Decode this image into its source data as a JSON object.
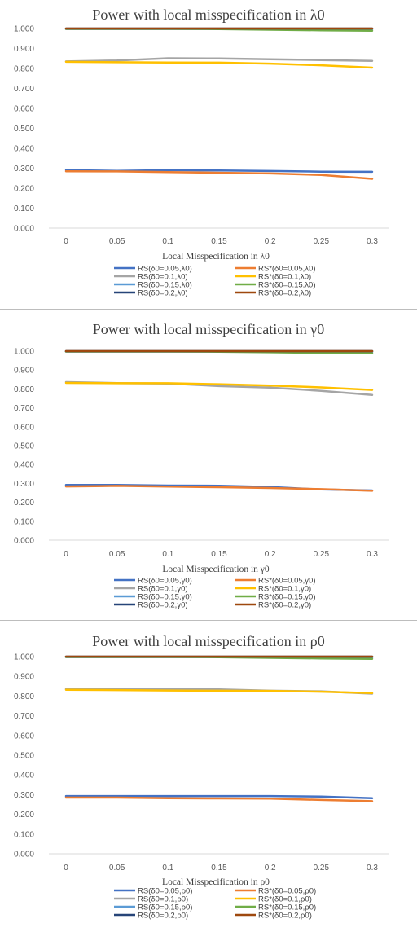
{
  "chart_data": [
    {
      "type": "line",
      "title": "Power with local misspecification in λ0",
      "xlabel": "Local Misspecification in λ0",
      "ylabel": "",
      "categories": [
        "0",
        "0.05",
        "0.1",
        "0.15",
        "0.2",
        "0.25",
        "0.3"
      ],
      "yticks": [
        "0.000",
        "0.100",
        "0.200",
        "0.300",
        "0.400",
        "0.500",
        "0.600",
        "0.700",
        "0.800",
        "0.900",
        "1.000"
      ],
      "ylim": [
        0,
        1
      ],
      "grid": false,
      "legend_position": "bottom",
      "series": [
        {
          "name": "RS(δ0=0.05,λ0)",
          "color": "#4472C4",
          "values": [
            0.29,
            0.287,
            0.29,
            0.289,
            0.286,
            0.283,
            0.282
          ]
        },
        {
          "name": "RS*(δ0=0.05,λ0)",
          "color": "#ED7D31",
          "values": [
            0.285,
            0.284,
            0.281,
            0.277,
            0.274,
            0.266,
            0.247
          ]
        },
        {
          "name": "RS(δ0=0.1,λ0)",
          "color": "#A5A5A5",
          "values": [
            0.835,
            0.84,
            0.851,
            0.85,
            0.846,
            0.842,
            0.838
          ]
        },
        {
          "name": "RS*(δ0=0.1,λ0)",
          "color": "#FFC000",
          "values": [
            0.833,
            0.831,
            0.83,
            0.829,
            0.824,
            0.816,
            0.804
          ]
        },
        {
          "name": "RS(δ0=0.15,λ0)",
          "color": "#5B9BD5",
          "values": [
            0.998,
            0.998,
            0.998,
            0.998,
            0.997,
            0.997,
            0.997
          ]
        },
        {
          "name": "RS*(δ0=0.15,λ0)",
          "color": "#70AD47",
          "values": [
            0.998,
            0.998,
            0.998,
            0.997,
            0.994,
            0.991,
            0.989
          ]
        },
        {
          "name": "RS(δ0=0.2,λ0)",
          "color": "#264478",
          "values": [
            1.0,
            1.0,
            1.0,
            1.0,
            1.0,
            1.0,
            1.0
          ]
        },
        {
          "name": "RS*(δ0=0.2,λ0)",
          "color": "#9E480E",
          "values": [
            1.0,
            1.0,
            1.0,
            1.0,
            1.0,
            1.0,
            1.0
          ]
        }
      ]
    },
    {
      "type": "line",
      "title": "Power with local misspecification in γ0",
      "xlabel": "Local Misspecification in γ0",
      "ylabel": "",
      "categories": [
        "0",
        "0.05",
        "0.1",
        "0.15",
        "0.2",
        "0.25",
        "0.3"
      ],
      "yticks": [
        "0.000",
        "0.100",
        "0.200",
        "0.300",
        "0.400",
        "0.500",
        "0.600",
        "0.700",
        "0.800",
        "0.900",
        "1.000"
      ],
      "ylim": [
        0,
        1
      ],
      "grid": false,
      "legend_position": "bottom",
      "series": [
        {
          "name": "RS(δ0=0.05,γ0)",
          "color": "#4472C4",
          "values": [
            0.292,
            0.292,
            0.289,
            0.288,
            0.281,
            0.268,
            0.263
          ]
        },
        {
          "name": "RS*(δ0=0.05,γ0)",
          "color": "#ED7D31",
          "values": [
            0.284,
            0.287,
            0.283,
            0.28,
            0.276,
            0.27,
            0.261
          ]
        },
        {
          "name": "RS(δ0=0.1,γ0)",
          "color": "#A5A5A5",
          "values": [
            0.836,
            0.831,
            0.829,
            0.815,
            0.807,
            0.79,
            0.768
          ]
        },
        {
          "name": "RS*(δ0=0.1,γ0)",
          "color": "#FFC000",
          "values": [
            0.832,
            0.83,
            0.83,
            0.825,
            0.818,
            0.808,
            0.795
          ]
        },
        {
          "name": "RS(δ0=0.15,γ0)",
          "color": "#5B9BD5",
          "values": [
            0.998,
            0.998,
            0.998,
            0.998,
            0.997,
            0.996,
            0.996
          ]
        },
        {
          "name": "RS*(δ0=0.15,γ0)",
          "color": "#70AD47",
          "values": [
            0.998,
            0.998,
            0.998,
            0.997,
            0.994,
            0.991,
            0.989
          ]
        },
        {
          "name": "RS(δ0=0.2,γ0)",
          "color": "#264478",
          "values": [
            1.0,
            1.0,
            1.0,
            1.0,
            1.0,
            1.0,
            1.0
          ]
        },
        {
          "name": "RS*(δ0=0.2,γ0)",
          "color": "#9E480E",
          "values": [
            1.0,
            1.0,
            1.0,
            1.0,
            1.0,
            1.0,
            1.0
          ]
        }
      ]
    },
    {
      "type": "line",
      "title": "Power with local misspecification in ρ0",
      "xlabel": "Local Misspecification in ρ0",
      "ylabel": "",
      "categories": [
        "0",
        "0.05",
        "0.1",
        "0.15",
        "0.2",
        "0.25",
        "0.3"
      ],
      "yticks": [
        "0.000",
        "0.100",
        "0.200",
        "0.300",
        "0.400",
        "0.500",
        "0.600",
        "0.700",
        "0.800",
        "0.900",
        "1.000"
      ],
      "ylim": [
        0,
        1
      ],
      "grid": false,
      "legend_position": "bottom",
      "series": [
        {
          "name": "RS(δ0=0.05,ρ0)",
          "color": "#4472C4",
          "values": [
            0.293,
            0.293,
            0.293,
            0.293,
            0.293,
            0.29,
            0.282
          ]
        },
        {
          "name": "RS*(δ0=0.05,ρ0)",
          "color": "#ED7D31",
          "values": [
            0.285,
            0.285,
            0.282,
            0.281,
            0.28,
            0.273,
            0.267
          ]
        },
        {
          "name": "RS(δ0=0.1,ρ0)",
          "color": "#A5A5A5",
          "values": [
            0.835,
            0.835,
            0.834,
            0.834,
            0.827,
            0.824,
            0.812
          ]
        },
        {
          "name": "RS*(δ0=0.1,ρ0)",
          "color": "#FFC000",
          "values": [
            0.832,
            0.83,
            0.828,
            0.827,
            0.826,
            0.822,
            0.815
          ]
        },
        {
          "name": "RS(δ0=0.15,ρ0)",
          "color": "#5B9BD5",
          "values": [
            0.998,
            0.998,
            0.998,
            0.998,
            0.997,
            0.996,
            0.995
          ]
        },
        {
          "name": "RS*(δ0=0.15,ρ0)",
          "color": "#70AD47",
          "values": [
            0.998,
            0.998,
            0.998,
            0.997,
            0.994,
            0.991,
            0.989
          ]
        },
        {
          "name": "RS(δ0=0.2,ρ0)",
          "color": "#264478",
          "values": [
            1.0,
            1.0,
            1.0,
            1.0,
            1.0,
            1.0,
            1.0
          ]
        },
        {
          "name": "RS*(δ0=0.2,ρ0)",
          "color": "#9E480E",
          "values": [
            1.0,
            1.0,
            1.0,
            1.0,
            1.0,
            1.0,
            1.0
          ]
        }
      ]
    }
  ]
}
